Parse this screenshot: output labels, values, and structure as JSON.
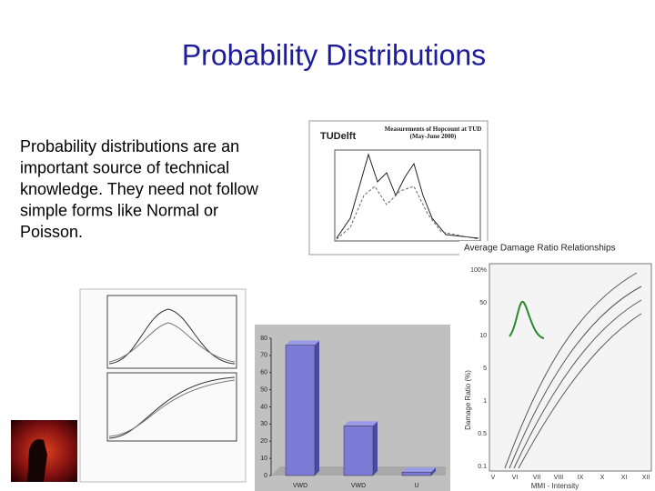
{
  "title": "Probability Distributions",
  "body_lines": [
    "Probability distributions are an",
    "important source of technical",
    "knowledge. They need not follow",
    "simple forms like Normal or",
    "Poisson."
  ],
  "figures": {
    "hopcount": {
      "logo": "TUDelft",
      "title": "Measurements of Hopcount at TUD (May-June 2000)"
    },
    "damage": {
      "title": "Average Damage Ratio Relationships",
      "x_label": "MMI - Intensity",
      "y_label": "Damage Ratio (%)",
      "y_labels": [
        "100%",
        "50",
        "10",
        "5",
        "1",
        "0.5",
        "0.1"
      ],
      "x_labels": [
        "V",
        "VI",
        "VII",
        "VIII",
        "IX",
        "X",
        "XI",
        "XII"
      ]
    },
    "bar_chart": {
      "type": "bar",
      "categories": [
        "VWD",
        "VWD",
        "U"
      ],
      "values": [
        76,
        29,
        2
      ],
      "ylim": [
        0,
        80
      ],
      "yticks": [
        0,
        10,
        20,
        30,
        40,
        50,
        60,
        70,
        80
      ],
      "color": "#7b7bd6"
    }
  }
}
